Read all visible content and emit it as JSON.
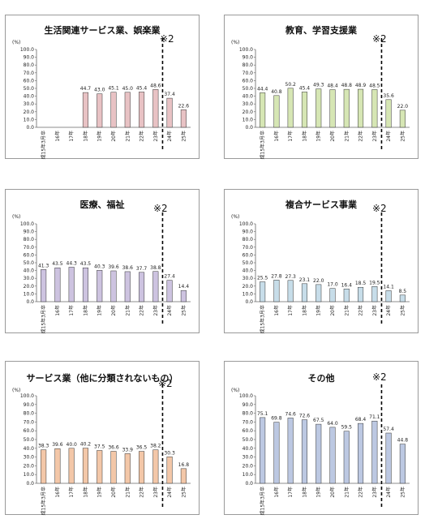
{
  "unit_label": "(%)",
  "note_label": "※2",
  "colors": {
    "pink": "#e8c2c4",
    "green": "#d6e6b4",
    "purple": "#cdc3e0",
    "lightblue": "#c7dde9",
    "orange": "#f3c7a8",
    "blue": "#bcc8e2",
    "bar_stroke": "#333333"
  },
  "chart_data": [
    {
      "type": "bar",
      "title": "生活関連サービス業、娯楽業",
      "categories": [
        "平成15年3月卒",
        "16年",
        "17年",
        "18年",
        "19年",
        "20年",
        "21年",
        "22年",
        "23年",
        "24年",
        "25年"
      ],
      "values": [
        null,
        null,
        null,
        44.7,
        43.0,
        45.1,
        45.0,
        45.4,
        48.6,
        37.4,
        22.6
      ],
      "labels": [
        "",
        "",
        "",
        "44.7",
        "43.0",
        "45.1",
        "45.0",
        "45.4",
        "48.6",
        "37.4",
        "22.6"
      ],
      "ylabel": "(%)",
      "ylim": [
        0,
        100
      ],
      "yticks": [
        "0.0",
        "10.0",
        "20.0",
        "30.0",
        "40.0",
        "50.0",
        "60.0",
        "70.0",
        "80.0",
        "90.0",
        "100.0"
      ],
      "color": "pink",
      "annotation": "※2"
    },
    {
      "type": "bar",
      "title": "教育、学習支援業",
      "categories": [
        "平成15年3月卒",
        "16年",
        "17年",
        "18年",
        "19年",
        "20年",
        "21年",
        "22年",
        "23年",
        "24年",
        "25年"
      ],
      "values": [
        44.4,
        40.8,
        50.2,
        45.4,
        49.3,
        48.4,
        48.8,
        48.9,
        48.5,
        35.6,
        22.0
      ],
      "labels": [
        "44.4",
        "40.8",
        "50.2",
        "45.4",
        "49.3",
        "48.4",
        "48.8",
        "48.9",
        "48.5",
        "35.6",
        "22.0"
      ],
      "ylabel": "(%)",
      "ylim": [
        0,
        100
      ],
      "yticks": [
        "0.0",
        "10.0",
        "20.0",
        "30.0",
        "40.0",
        "50.0",
        "60.0",
        "70.0",
        "80.0",
        "90.0",
        "100.0"
      ],
      "color": "green",
      "annotation": "※2"
    },
    {
      "type": "bar",
      "title": "医療、福祉",
      "categories": [
        "平成15年3月卒",
        "16年",
        "17年",
        "18年",
        "19年",
        "20年",
        "21年",
        "22年",
        "23年",
        "24年",
        "25年"
      ],
      "values": [
        41.3,
        43.5,
        44.3,
        43.5,
        40.3,
        39.6,
        38.6,
        37.7,
        38.8,
        27.4,
        14.4
      ],
      "labels": [
        "41.3",
        "43.5",
        "44.3",
        "43.5",
        "40.3",
        "39.6",
        "38.6",
        "37.7",
        "38.8",
        "27.4",
        "14.4"
      ],
      "ylabel": "(%)",
      "ylim": [
        0,
        100
      ],
      "yticks": [
        "0.0",
        "10.0",
        "20.0",
        "30.0",
        "40.0",
        "50.0",
        "60.0",
        "70.0",
        "80.0",
        "90.0",
        "100.0"
      ],
      "color": "purple",
      "annotation": "※2"
    },
    {
      "type": "bar",
      "title": "複合サービス事業",
      "categories": [
        "平成15年3月卒",
        "16年",
        "17年",
        "18年",
        "19年",
        "20年",
        "21年",
        "22年",
        "23年",
        "24年",
        "25年"
      ],
      "values": [
        25.5,
        27.8,
        27.3,
        23.1,
        22.0,
        17.0,
        16.4,
        18.5,
        19.5,
        14.1,
        8.5
      ],
      "labels": [
        "25.5",
        "27.8",
        "27.3",
        "23.1",
        "22.0",
        "17.0",
        "16.4",
        "18.5",
        "19.5",
        "14.1",
        "8.5"
      ],
      "ylabel": "(%)",
      "ylim": [
        0,
        100
      ],
      "yticks": [
        "0.0",
        "10.0",
        "20.0",
        "30.0",
        "40.0",
        "50.0",
        "60.0",
        "70.0",
        "80.0",
        "90.0",
        "100.0"
      ],
      "color": "lightblue",
      "annotation": "※2"
    },
    {
      "type": "bar",
      "title": "サービス業（他に分類されないもの）",
      "categories": [
        "平成15年3月卒",
        "16年",
        "17年",
        "18年",
        "19年",
        "20年",
        "21年",
        "22年",
        "23年",
        "24年",
        "25年"
      ],
      "values": [
        38.3,
        39.6,
        40.0,
        40.2,
        37.5,
        36.6,
        33.9,
        36.5,
        38.2,
        30.3,
        16.8
      ],
      "labels": [
        "38.3",
        "39.6",
        "40.0",
        "40.2",
        "37.5",
        "36.6",
        "33.9",
        "36.5",
        "38.2",
        "30.3",
        "16.8"
      ],
      "ylabel": "(%)",
      "ylim": [
        0,
        100
      ],
      "yticks": [
        "0.0",
        "10.0",
        "20.0",
        "30.0",
        "40.0",
        "50.0",
        "60.0",
        "70.0",
        "80.0",
        "90.0",
        "100.0"
      ],
      "color": "orange",
      "annotation": "※2"
    },
    {
      "type": "bar",
      "title": "その他",
      "categories": [
        "平成15年3月卒",
        "16年",
        "17年",
        "18年",
        "19年",
        "20年",
        "21年",
        "22年",
        "23年",
        "24年",
        "25年"
      ],
      "values": [
        75.1,
        69.8,
        74.6,
        72.6,
        67.5,
        64.0,
        59.5,
        68.4,
        71.1,
        57.4,
        44.8
      ],
      "labels": [
        "75.1",
        "69.8",
        "74.6",
        "72.6",
        "67.5",
        "64.0",
        "59.5",
        "68.4",
        "71.1",
        "57.4",
        "44.8"
      ],
      "ylabel": "(%)",
      "ylim": [
        0,
        100
      ],
      "yticks": [
        "0.0",
        "10.0",
        "20.0",
        "30.0",
        "40.0",
        "50.0",
        "60.0",
        "70.0",
        "80.0",
        "90.0",
        "100.0"
      ],
      "color": "blue",
      "annotation": "※2"
    }
  ]
}
